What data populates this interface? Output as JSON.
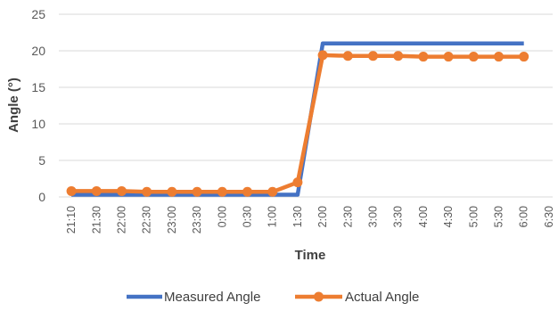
{
  "chart_data": {
    "type": "line",
    "xlabel": "Time",
    "ylabel": "Angle (°)",
    "ylim": [
      0,
      25
    ],
    "yticks": [
      0,
      5,
      10,
      15,
      20,
      25
    ],
    "grid": true,
    "legend": "bottom",
    "categories": [
      "21:10",
      "21:30",
      "22:00",
      "22:30",
      "23:00",
      "23:30",
      "0:00",
      "0:30",
      "1:00",
      "1:30",
      "2:00",
      "2:30",
      "3:00",
      "3:30",
      "4:00",
      "4:30",
      "5:00",
      "5:30",
      "6:00",
      "6:30"
    ],
    "series": [
      {
        "name": "Measured Angle",
        "color": "#4472C4",
        "markers": false,
        "values": [
          0.3,
          0.3,
          0.3,
          0.3,
          0.3,
          0.3,
          0.3,
          0.3,
          0.3,
          0.3,
          21,
          21,
          21,
          21,
          21,
          21,
          21,
          21,
          21,
          null
        ]
      },
      {
        "name": "Actual Angle",
        "color": "#ED7D31",
        "markers": true,
        "values": [
          0.8,
          0.8,
          0.8,
          0.7,
          0.7,
          0.7,
          0.7,
          0.7,
          0.7,
          2.0,
          19.4,
          19.3,
          19.3,
          19.3,
          19.2,
          19.2,
          19.2,
          19.2,
          19.2,
          null
        ]
      }
    ]
  }
}
